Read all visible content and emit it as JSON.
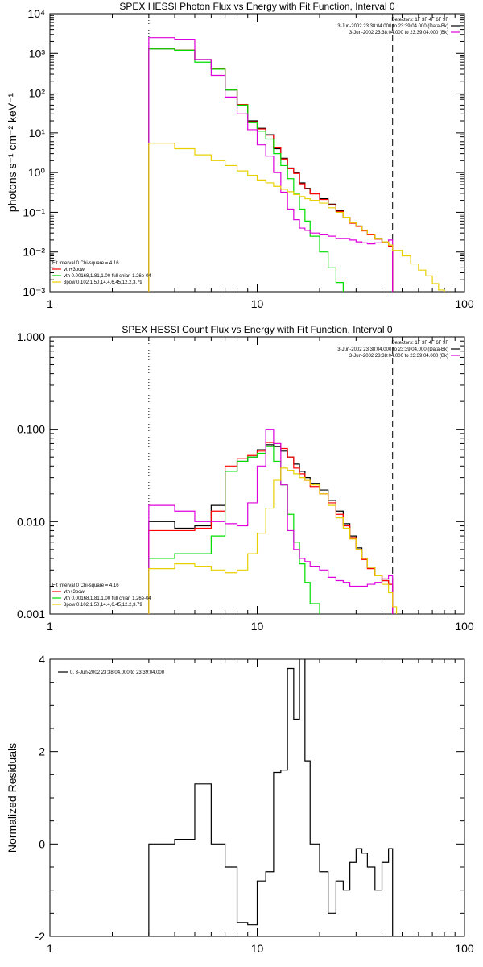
{
  "chart_data": [
    {
      "type": "line",
      "title": "SPEX HESSI Photon Flux vs Energy with Fit Function, Interval 0",
      "xlabel": "",
      "ylabel": "photons s⁻¹ cm⁻² keV⁻¹",
      "xscale": "log",
      "yscale": "log",
      "xlim": [
        1,
        100
      ],
      "ylim": [
        0.001,
        10000
      ],
      "x_tick_labels": [
        "1",
        "10",
        "100"
      ],
      "y_tick_labels": [
        "10⁻³",
        "10⁻²",
        "10⁻¹",
        "10⁰",
        "10¹",
        "10²",
        "10³",
        "10⁴"
      ],
      "x_ticks": [
        1,
        10,
        100
      ],
      "y_ticks": [
        0.001,
        0.01,
        0.1,
        1,
        10,
        100,
        1000,
        10000
      ],
      "fit_low": 3,
      "fit_high": 45,
      "header_lines": [
        "Detectors: 1F 3F 4F 6F 9F",
        "3-Jun-2002 23:38:04.000 to 23:39:04.000 (Data-Bk)",
        "3-Jun-2002 23:38:04.000 to 23:39:04.000 (Bk)"
      ],
      "fit_legend": [
        "Fit Interval 0   Chi-square = 4.16",
        "vth+3pow",
        "vth 0.00168,1.81,1.00  full chian 1.26e-04",
        "3pow 0.102,1.50,14.4,6.45,12.2,3.79"
      ],
      "series": [
        {
          "color": "#000000",
          "edges": [
            3,
            4,
            5,
            6,
            7,
            8,
            9,
            10,
            11,
            12,
            13,
            14,
            15,
            16,
            17,
            18,
            20,
            22,
            24,
            26,
            28,
            30,
            32,
            34,
            37,
            40,
            43,
            45
          ],
          "values": [
            1300,
            1200,
            700,
            400,
            120,
            50,
            20,
            13,
            9,
            4,
            2.3,
            1.3,
            1.0,
            0.55,
            0.4,
            0.3,
            0.22,
            0.16,
            0.11,
            0.075,
            0.055,
            0.045,
            0.035,
            0.028,
            0.022,
            0.018,
            0.015
          ]
        },
        {
          "color": "#ff0000",
          "edges": [
            3,
            4,
            5,
            6,
            7,
            8,
            9,
            10,
            11,
            12,
            13,
            14,
            15,
            16,
            17,
            18,
            20,
            22,
            24,
            26,
            28,
            30,
            32,
            34,
            37,
            40,
            43,
            45
          ],
          "values": [
            1320,
            1210,
            690,
            410,
            125,
            52,
            19,
            12.5,
            8.8,
            4.2,
            2.2,
            1.25,
            0.95,
            0.52,
            0.39,
            0.29,
            0.21,
            0.155,
            0.105,
            0.073,
            0.053,
            0.044,
            0.034,
            0.027,
            0.021,
            0.017,
            0.014
          ]
        },
        {
          "color": "#00dd00",
          "edges": [
            3,
            4,
            5,
            6,
            7,
            8,
            9,
            10,
            11,
            12,
            13,
            14,
            15,
            16,
            17,
            18,
            20,
            22,
            24,
            26
          ],
          "values": [
            1300,
            1200,
            600,
            400,
            120,
            50,
            18,
            11,
            7,
            3,
            1.5,
            0.7,
            0.3,
            0.12,
            0.06,
            0.025,
            0.01,
            0.004,
            0.0017
          ]
        },
        {
          "color": "#dd00dd",
          "edges": [
            3,
            4,
            5,
            6,
            7,
            8,
            9,
            10,
            11,
            12,
            13,
            14,
            15,
            16,
            17,
            18,
            20,
            22,
            24,
            26,
            28,
            30,
            32,
            34,
            37,
            40,
            43,
            45
          ],
          "values": [
            2500,
            2200,
            700,
            280,
            80,
            30,
            12,
            5,
            2.6,
            1.0,
            0.32,
            0.12,
            0.065,
            0.04,
            0.035,
            0.03,
            0.027,
            0.025,
            0.022,
            0.022,
            0.02,
            0.018,
            0.017,
            0.016,
            0.017,
            0.018,
            0.02
          ]
        },
        {
          "color": "#e8d000",
          "edges": [
            3,
            4,
            5,
            6,
            7,
            8,
            9,
            10,
            11,
            12,
            13,
            14,
            15,
            16,
            17,
            18,
            20,
            22,
            24,
            26,
            28,
            30,
            32,
            34,
            37,
            40,
            43,
            45,
            50,
            55,
            60,
            65,
            70,
            75,
            80
          ],
          "values": [
            5.5,
            4,
            2.8,
            2,
            1.5,
            1.1,
            0.85,
            0.65,
            0.55,
            0.45,
            0.38,
            0.33,
            0.28,
            0.25,
            0.22,
            0.2,
            0.17,
            0.13,
            0.1,
            0.075,
            0.055,
            0.045,
            0.035,
            0.028,
            0.022,
            0.018,
            0.015,
            0.011,
            0.008,
            0.005,
            0.0035,
            0.0025,
            0.0016,
            0.0011
          ]
        }
      ]
    },
    {
      "type": "line",
      "title": "SPEX HESSI Count Flux vs Energy with Fit Function, Interval 0",
      "xlabel": "",
      "ylabel": "",
      "xscale": "log",
      "yscale": "log",
      "xlim": [
        1,
        100
      ],
      "ylim": [
        0.001,
        1.0
      ],
      "x_tick_labels": [
        "1",
        "10",
        "100"
      ],
      "y_tick_labels": [
        "0.001",
        "0.010",
        "0.100",
        "1.000"
      ],
      "x_ticks": [
        1,
        10,
        100
      ],
      "y_ticks": [
        0.001,
        0.01,
        0.1,
        1.0
      ],
      "fit_low": 3,
      "fit_high": 45,
      "header_lines": [
        "Detectors: 1F 3F 4F 6F 9F",
        "3-Jun-2002 23:38:04.000 to 23:39:04.000 (Data-Bk)",
        "3-Jun-2002 23:38:04.000 to 23:39:04.000 (Bk)"
      ],
      "fit_legend": [
        "Fit Interval 0   Chi-square = 4.16",
        "vth+3pow",
        "vth 0.00168,1.81,1.00  full chian 1.26e-04",
        "3pow 0.102,1.50,14.4,6.45,12.2,3.79"
      ],
      "series": [
        {
          "color": "#000000",
          "edges": [
            3,
            4,
            5,
            6,
            7,
            8,
            9,
            10,
            11,
            12,
            13,
            14,
            15,
            16,
            17,
            18,
            20,
            22,
            24,
            26,
            28,
            30,
            32,
            34,
            37,
            40,
            43,
            45
          ],
          "values": [
            0.01,
            0.0085,
            0.009,
            0.015,
            0.035,
            0.045,
            0.05,
            0.06,
            0.068,
            0.065,
            0.058,
            0.05,
            0.042,
            0.035,
            0.03,
            0.026,
            0.022,
            0.017,
            0.013,
            0.0095,
            0.007,
            0.0052,
            0.004,
            0.0032,
            0.0026,
            0.0023,
            0.0021
          ]
        },
        {
          "color": "#ff0000",
          "edges": [
            3,
            4,
            5,
            6,
            7,
            8,
            9,
            10,
            11,
            12,
            13,
            14,
            15,
            16,
            17,
            18,
            20,
            22,
            24,
            26,
            28,
            30,
            32,
            34,
            37,
            40,
            43,
            45
          ],
          "values": [
            0.008,
            0.008,
            0.0085,
            0.013,
            0.04,
            0.048,
            0.052,
            0.058,
            0.072,
            0.07,
            0.062,
            0.05,
            0.038,
            0.033,
            0.028,
            0.024,
            0.02,
            0.016,
            0.012,
            0.009,
            0.0066,
            0.005,
            0.0039,
            0.0031,
            0.0026,
            0.0023,
            0.0021
          ]
        },
        {
          "color": "#00dd00",
          "edges": [
            3,
            4,
            5,
            6,
            7,
            8,
            9,
            10,
            11,
            12,
            13,
            14,
            15,
            16,
            17,
            18,
            20
          ],
          "values": [
            0.004,
            0.0045,
            0.0045,
            0.007,
            0.035,
            0.045,
            0.05,
            0.055,
            0.065,
            0.045,
            0.025,
            0.012,
            0.006,
            0.0035,
            0.0022,
            0.0013
          ]
        },
        {
          "color": "#dd00dd",
          "edges": [
            3,
            4,
            5,
            6,
            7,
            8,
            9,
            10,
            11,
            12,
            13,
            14,
            15,
            16,
            17,
            18,
            20,
            22,
            24,
            26,
            28,
            30,
            32,
            34,
            37,
            40,
            43,
            45
          ],
          "values": [
            0.015,
            0.013,
            0.01,
            0.01,
            0.0095,
            0.009,
            0.016,
            0.04,
            0.1,
            0.07,
            0.025,
            0.008,
            0.005,
            0.004,
            0.0037,
            0.0033,
            0.003,
            0.0025,
            0.0023,
            0.0022,
            0.002,
            0.002,
            0.002,
            0.0021,
            0.0022,
            0.0024,
            0.0026
          ]
        },
        {
          "color": "#e8d000",
          "edges": [
            3,
            4,
            5,
            6,
            7,
            8,
            9,
            10,
            11,
            12,
            13,
            14,
            15,
            16,
            17,
            18,
            20,
            22,
            24,
            26,
            28,
            30,
            32,
            34,
            37,
            40,
            43,
            45,
            47
          ],
          "values": [
            0.0031,
            0.0035,
            0.0033,
            0.003,
            0.0028,
            0.003,
            0.0045,
            0.0075,
            0.014,
            0.028,
            0.038,
            0.036,
            0.033,
            0.03,
            0.028,
            0.025,
            0.02,
            0.015,
            0.011,
            0.0085,
            0.0065,
            0.005,
            0.004,
            0.0032,
            0.0026,
            0.0021,
            0.0017,
            0.0012
          ]
        }
      ]
    },
    {
      "type": "line",
      "title": "",
      "xlabel": "",
      "ylabel": "Normalized Residuals",
      "xscale": "log",
      "yscale": "linear",
      "xlim": [
        1,
        100
      ],
      "ylim": [
        -2,
        4
      ],
      "x_tick_labels": [
        "1",
        "10",
        "100"
      ],
      "y_tick_labels": [
        "-2",
        "0",
        "2",
        "4"
      ],
      "x_ticks": [
        1,
        10,
        100
      ],
      "y_ticks": [
        -2,
        0,
        2,
        4
      ],
      "legend": [
        "0.  3-Jun-2002 23:38:04.000 to 23:39:04.000"
      ],
      "series": [
        {
          "color": "#000000",
          "edges": [
            3,
            4,
            5,
            6,
            7,
            8,
            9,
            10,
            11,
            12,
            13,
            14,
            15,
            16,
            17,
            18,
            20,
            22,
            24,
            26,
            28,
            30,
            32,
            34,
            37,
            40,
            43,
            45
          ],
          "values": [
            0.0,
            0.1,
            1.3,
            0.0,
            -0.5,
            -1.7,
            -1.75,
            -0.8,
            -0.6,
            1.55,
            1.6,
            3.8,
            2.7,
            6.0,
            1.8,
            0.0,
            -0.6,
            -1.5,
            -0.8,
            -1.0,
            -0.4,
            -0.1,
            -0.2,
            -0.5,
            -1.0,
            -0.4,
            -0.1
          ]
        }
      ]
    }
  ]
}
